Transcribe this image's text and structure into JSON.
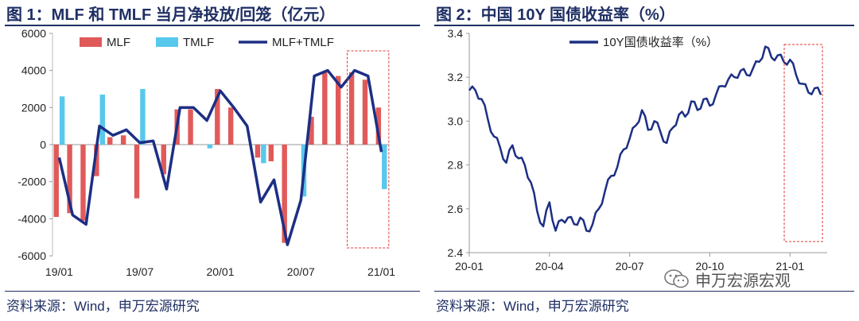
{
  "colors": {
    "bar_mlf": "#e15a5a",
    "bar_tmlf": "#58c8ec",
    "line": "#1c2f84",
    "title": "#1f2f64",
    "highlight": "#e03a3a"
  },
  "chart1": {
    "title": "图 1：MLF 和 TMLF 当月净投放/回笼（亿元）",
    "source": "资料来源：Wind，申万宏源研究"
  },
  "chart2": {
    "title": "图 2：中国 10Y 国债收益率（%）",
    "source": "资料来源：Wind，申万宏源研究"
  },
  "watermark": {
    "text": "申万宏源宏观",
    "icon": "wechat-icon"
  },
  "chart_data": [
    {
      "type": "bar",
      "ylim": [
        -6000,
        6000
      ],
      "y_ticks": [
        "6000",
        "4000",
        "2000",
        "0",
        "-2000",
        "-4000",
        "-6000"
      ],
      "x_tick_labels": [
        "19/01",
        "19/07",
        "20/01",
        "20/07",
        "21/01"
      ],
      "x_tick_index": [
        0,
        6,
        12,
        18,
        24
      ],
      "categories": [
        "19/01",
        "19/02",
        "19/03",
        "19/04",
        "19/05",
        "19/06",
        "19/07",
        "19/08",
        "19/09",
        "19/10",
        "19/11",
        "19/12",
        "20/01",
        "20/02",
        "20/03",
        "20/04",
        "20/05",
        "20/06",
        "20/07",
        "20/08",
        "20/09",
        "20/10",
        "20/11",
        "20/12",
        "21/01"
      ],
      "legend_position": "top",
      "series": [
        {
          "name": "MLF",
          "kind": "bar",
          "values": [
            -3900,
            -3700,
            -4100,
            -1700,
            400,
            500,
            -2900,
            0,
            -1600,
            1900,
            1900,
            0,
            3000,
            2000,
            0,
            -700,
            -900,
            -5300,
            0,
            1500,
            3900,
            3700,
            3900,
            3500,
            2000
          ]
        },
        {
          "name": "TMLF",
          "kind": "bar",
          "values": [
            2600,
            0,
            0,
            2700,
            0,
            0,
            3000,
            0,
            0,
            0,
            0,
            -200,
            0,
            0,
            0,
            -1000,
            0,
            0,
            -2800,
            0,
            0,
            0,
            0,
            0,
            -2400
          ]
        },
        {
          "name": "MLF+TMLF",
          "kind": "line",
          "values": [
            -700,
            -3800,
            -4300,
            1000,
            500,
            800,
            100,
            200,
            -2400,
            2000,
            2000,
            1300,
            2900,
            2000,
            1000,
            -3100,
            -1900,
            -5400,
            -3000,
            3700,
            4000,
            3100,
            4000,
            3700,
            -400
          ]
        }
      ],
      "highlight_range": [
        "20/11",
        "21/01"
      ]
    },
    {
      "type": "line",
      "ylim": [
        2.4,
        3.4
      ],
      "y_ticks": [
        "3.4",
        "3.2",
        "3.0",
        "2.8",
        "2.6",
        "2.4"
      ],
      "x_tick_labels": [
        "20-01",
        "20-04",
        "20-07",
        "20-10",
        "21-01"
      ],
      "x_tick_index": [
        0,
        13,
        26,
        39,
        52
      ],
      "series": [
        {
          "name": "10Y国债收益率（%）",
          "values": [
            3.14,
            3.14,
            3.1,
            3.01,
            2.93,
            2.88,
            2.81,
            2.89,
            2.83,
            2.8,
            2.72,
            2.59,
            2.52,
            2.63,
            2.5,
            2.55,
            2.56,
            2.53,
            2.56,
            2.5,
            2.53,
            2.6,
            2.68,
            2.75,
            2.79,
            2.87,
            2.92,
            2.98,
            3.05,
            2.96,
            3.0,
            2.95,
            2.9,
            2.97,
            3.03,
            3.02,
            3.09,
            3.05,
            3.1,
            3.07,
            3.12,
            3.16,
            3.19,
            3.2,
            3.23,
            3.21,
            3.24,
            3.27,
            3.34,
            3.29,
            3.3,
            3.27,
            3.28,
            3.21,
            3.17,
            3.13,
            3.15,
            3.12
          ]
        }
      ],
      "legend_position": "top-left",
      "highlight_range": [
        "20-12",
        "21-01"
      ]
    }
  ]
}
